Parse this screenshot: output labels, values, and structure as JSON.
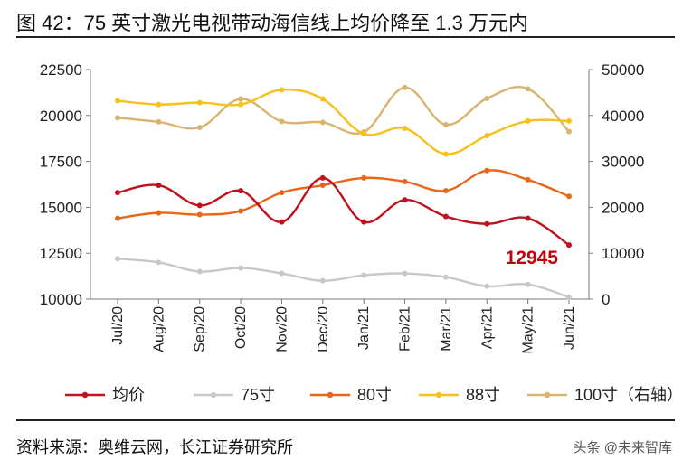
{
  "header": {
    "title": "图 42：75 英寸激光电视带动海信线上均价降至 1.3 万元内"
  },
  "footer": {
    "source": "资料来源：奥维云网，长江证券研究所",
    "watermark": "头条 @未来智库"
  },
  "chart_data": {
    "type": "line",
    "categories": [
      "Jul/20",
      "Aug/20",
      "Sep/20",
      "Oct/20",
      "Nov/20",
      "Dec/20",
      "Jan/21",
      "Feb/21",
      "Mar/21",
      "Apr/21",
      "May/21",
      "Jun/21"
    ],
    "y_left": {
      "min": 10000,
      "max": 22500,
      "ticks": [
        "10000",
        "12500",
        "15000",
        "17500",
        "20000",
        "22500"
      ]
    },
    "y_right": {
      "min": 0,
      "max": 50000,
      "ticks": [
        "0",
        "10000",
        "20000",
        "30000",
        "40000",
        "50000"
      ]
    },
    "legend_position": "bottom",
    "grid": false,
    "series": [
      {
        "name": "均价",
        "axis": "left",
        "color": "#c0111d",
        "values": [
          15800,
          16200,
          15100,
          15900,
          14200,
          16600,
          14200,
          15400,
          14500,
          14100,
          14400,
          12945
        ]
      },
      {
        "name": "75寸",
        "axis": "left",
        "color": "#c8c8c8",
        "values": [
          12200,
          12000,
          11500,
          11700,
          11400,
          11000,
          11300,
          11400,
          11200,
          10700,
          10800,
          10100
        ]
      },
      {
        "name": "80寸",
        "axis": "left",
        "color": "#e8661a",
        "values": [
          14400,
          14700,
          14600,
          14800,
          15800,
          16200,
          16600,
          16400,
          15900,
          17000,
          16500,
          15600
        ]
      },
      {
        "name": "88寸",
        "axis": "left",
        "color": "#f7c119",
        "values": [
          20800,
          20600,
          20700,
          20600,
          21400,
          20900,
          19000,
          19300,
          17900,
          18900,
          19700,
          19700
        ]
      },
      {
        "name": "100寸（右轴）",
        "axis": "right",
        "color": "#d8b46f",
        "values": [
          39500,
          38600,
          37400,
          43600,
          38700,
          38500,
          36400,
          46100,
          38000,
          43700,
          45800,
          36500
        ]
      }
    ],
    "annotations": [
      {
        "series": "均价",
        "category": "Jun/21",
        "text": "12945"
      }
    ]
  }
}
